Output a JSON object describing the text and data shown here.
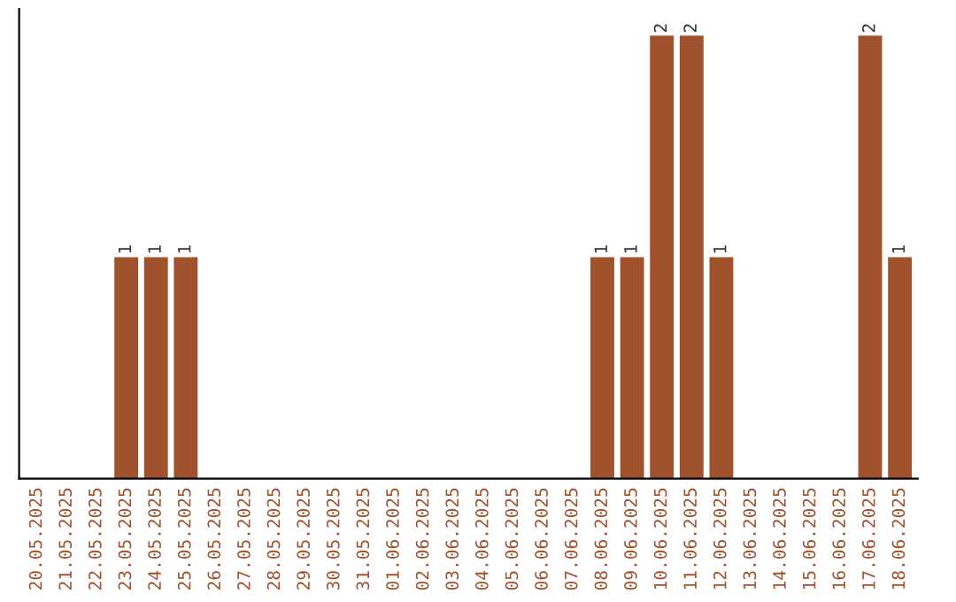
{
  "chart_data": {
    "type": "bar",
    "categories": [
      "20.05.2025",
      "21.05.2025",
      "22.05.2025",
      "23.05.2025",
      "24.05.2025",
      "25.05.2025",
      "26.05.2025",
      "27.05.2025",
      "28.05.2025",
      "29.05.2025",
      "30.05.2025",
      "31.05.2025",
      "01.06.2025",
      "02.06.2025",
      "03.06.2025",
      "04.06.2025",
      "05.06.2025",
      "06.06.2025",
      "07.06.2025",
      "08.06.2025",
      "09.06.2025",
      "10.06.2025",
      "11.06.2025",
      "12.06.2025",
      "13.06.2025",
      "14.06.2025",
      "15.06.2025",
      "16.06.2025",
      "17.06.2025",
      "18.06.2025"
    ],
    "values": [
      0,
      0,
      0,
      1,
      1,
      1,
      0,
      0,
      0,
      0,
      0,
      0,
      0,
      0,
      0,
      0,
      0,
      0,
      0,
      1,
      1,
      2,
      2,
      1,
      0,
      0,
      0,
      0,
      2,
      1
    ],
    "value_labels": [
      null,
      null,
      null,
      "1",
      "1",
      "1",
      null,
      null,
      null,
      null,
      null,
      null,
      null,
      null,
      null,
      null,
      null,
      null,
      null,
      "1",
      "1",
      "2",
      "2",
      "1",
      null,
      null,
      null,
      null,
      "2",
      "1"
    ],
    "color": "#a0522d",
    "tick_labels": "x",
    "grid": false,
    "legend": false
  }
}
